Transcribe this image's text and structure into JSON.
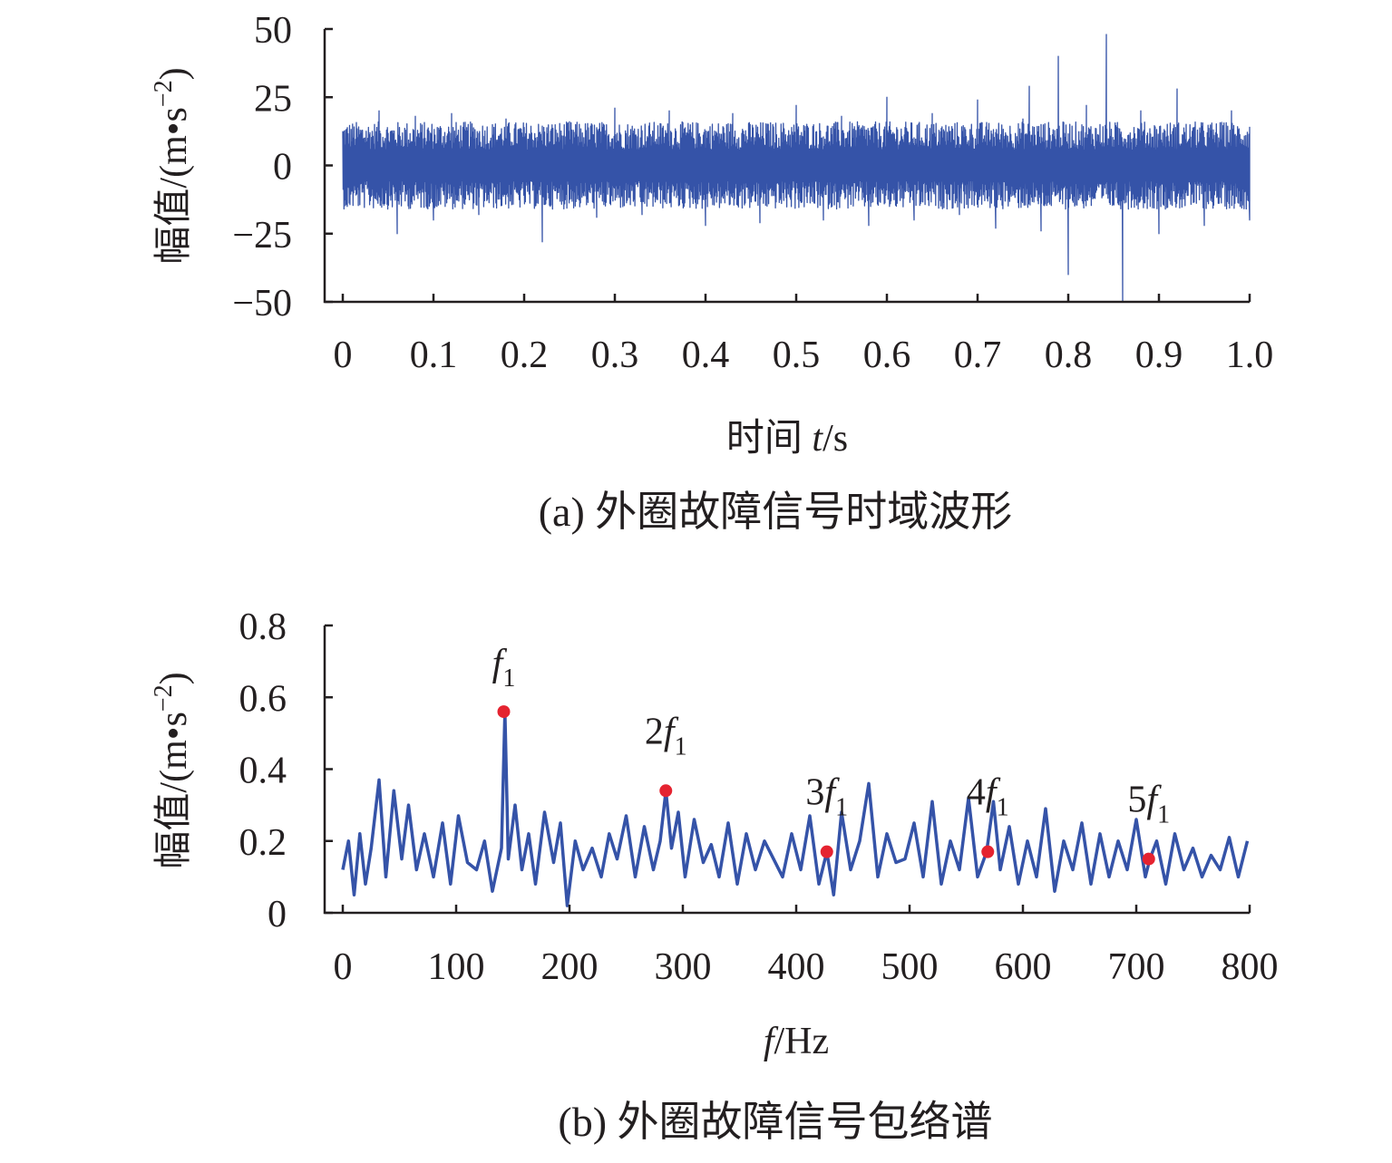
{
  "chart_data": [
    {
      "type": "line",
      "caption": "(a) 外圈故障信号时域波形",
      "xlabel_text": "时间 ",
      "xlabel_var": "t",
      "xlabel_unit": "/s",
      "ylabel": "幅值/(m•s",
      "ylabel_sup": "−2",
      "ylabel_close": ")",
      "xlim": [
        0,
        1.0
      ],
      "ylim": [
        -50,
        50
      ],
      "xticks": [
        "0",
        "0.1",
        "0.2",
        "0.3",
        "0.4",
        "0.5",
        "0.6",
        "0.7",
        "0.8",
        "0.9",
        "1.0"
      ],
      "yticks": [
        "−50",
        "−25",
        "0",
        "25",
        "50"
      ],
      "grid": false,
      "series": [
        {
          "color": "#3553a8",
          "description_envelope": "dense noise mostly within ±15 to ±22",
          "x": [
            0,
            0.005,
            0.04,
            0.06,
            0.08,
            0.1,
            0.12,
            0.15,
            0.18,
            0.22,
            0.25,
            0.28,
            0.3,
            0.33,
            0.36,
            0.4,
            0.43,
            0.46,
            0.5,
            0.53,
            0.55,
            0.58,
            0.6,
            0.63,
            0.65,
            0.68,
            0.7,
            0.72,
            0.75,
            0.757,
            0.77,
            0.789,
            0.8,
            0.82,
            0.842,
            0.86,
            0.88,
            0.9,
            0.92,
            0.95,
            0.98,
            1.0
          ],
          "y": [
            10,
            -15,
            20,
            -25,
            18,
            -20,
            19,
            -18,
            17,
            -28,
            16,
            -19,
            21,
            -18,
            20,
            -22,
            19,
            -21,
            22,
            -20,
            18,
            -22,
            25,
            -20,
            19,
            -18,
            24,
            -23,
            17,
            29,
            -24,
            40,
            -40,
            22,
            48,
            -50,
            20,
            -25,
            28,
            -22,
            20,
            -20
          ]
        }
      ]
    },
    {
      "type": "line",
      "caption": "(b) 外圈故障信号包络谱",
      "xlabel_var": "f",
      "xlabel_unit": "/Hz",
      "ylabel": "幅值/(m•s",
      "ylabel_sup": "−2",
      "ylabel_close": ")",
      "xlim": [
        0,
        800
      ],
      "ylim": [
        0,
        0.8
      ],
      "xticks": [
        "0",
        "100",
        "200",
        "300",
        "400",
        "500",
        "600",
        "700",
        "800"
      ],
      "yticks": [
        "0",
        "0.2",
        "0.4",
        "0.6",
        "0.8"
      ],
      "grid": false,
      "series": [
        {
          "color": "#3553a8",
          "x": [
            0,
            5,
            10,
            15,
            20,
            25,
            32,
            38,
            45,
            52,
            58,
            65,
            72,
            80,
            88,
            95,
            102,
            110,
            118,
            125,
            132,
            140,
            143,
            146,
            152,
            158,
            164,
            170,
            178,
            186,
            192,
            198,
            205,
            212,
            220,
            228,
            235,
            242,
            250,
            258,
            266,
            274,
            280,
            285,
            290,
            296,
            302,
            310,
            318,
            325,
            332,
            340,
            348,
            356,
            364,
            372,
            380,
            388,
            396,
            404,
            412,
            420,
            427,
            433,
            440,
            448,
            456,
            464,
            472,
            480,
            488,
            496,
            504,
            512,
            520,
            528,
            536,
            544,
            552,
            560,
            568,
            574,
            580,
            588,
            596,
            604,
            612,
            620,
            628,
            636,
            644,
            652,
            660,
            668,
            676,
            684,
            692,
            700,
            708,
            712,
            718,
            726,
            734,
            742,
            750,
            758,
            766,
            774,
            782,
            790,
            798
          ],
          "y": [
            0.12,
            0.2,
            0.05,
            0.22,
            0.08,
            0.18,
            0.37,
            0.1,
            0.34,
            0.15,
            0.3,
            0.12,
            0.22,
            0.1,
            0.25,
            0.08,
            0.27,
            0.14,
            0.12,
            0.2,
            0.06,
            0.18,
            0.56,
            0.15,
            0.3,
            0.12,
            0.22,
            0.08,
            0.28,
            0.14,
            0.25,
            0.02,
            0.2,
            0.12,
            0.18,
            0.1,
            0.22,
            0.15,
            0.27,
            0.1,
            0.24,
            0.12,
            0.2,
            0.34,
            0.18,
            0.28,
            0.1,
            0.26,
            0.14,
            0.19,
            0.1,
            0.25,
            0.08,
            0.22,
            0.12,
            0.2,
            0.15,
            0.1,
            0.22,
            0.12,
            0.27,
            0.08,
            0.17,
            0.05,
            0.28,
            0.12,
            0.2,
            0.36,
            0.1,
            0.22,
            0.14,
            0.15,
            0.25,
            0.1,
            0.31,
            0.08,
            0.2,
            0.12,
            0.32,
            0.1,
            0.17,
            0.31,
            0.12,
            0.24,
            0.08,
            0.2,
            0.1,
            0.29,
            0.06,
            0.2,
            0.12,
            0.25,
            0.08,
            0.22,
            0.1,
            0.2,
            0.12,
            0.26,
            0.1,
            0.15,
            0.2,
            0.08,
            0.22,
            0.12,
            0.18,
            0.1,
            0.16,
            0.12,
            0.21,
            0.1,
            0.2
          ]
        }
      ],
      "markers": [
        {
          "label": "f",
          "coef": "",
          "sub": "1",
          "x": 142,
          "y": 0.56,
          "color": "#e52330"
        },
        {
          "label": "f",
          "coef": "2",
          "sub": "1",
          "x": 285,
          "y": 0.34,
          "color": "#e52330"
        },
        {
          "label": "f",
          "coef": "3",
          "sub": "1",
          "x": 427,
          "y": 0.17,
          "color": "#e52330"
        },
        {
          "label": "f",
          "coef": "4",
          "sub": "1",
          "x": 569,
          "y": 0.17,
          "color": "#e52330"
        },
        {
          "label": "f",
          "coef": "5",
          "sub": "1",
          "x": 711,
          "y": 0.15,
          "color": "#e52330"
        }
      ]
    }
  ]
}
